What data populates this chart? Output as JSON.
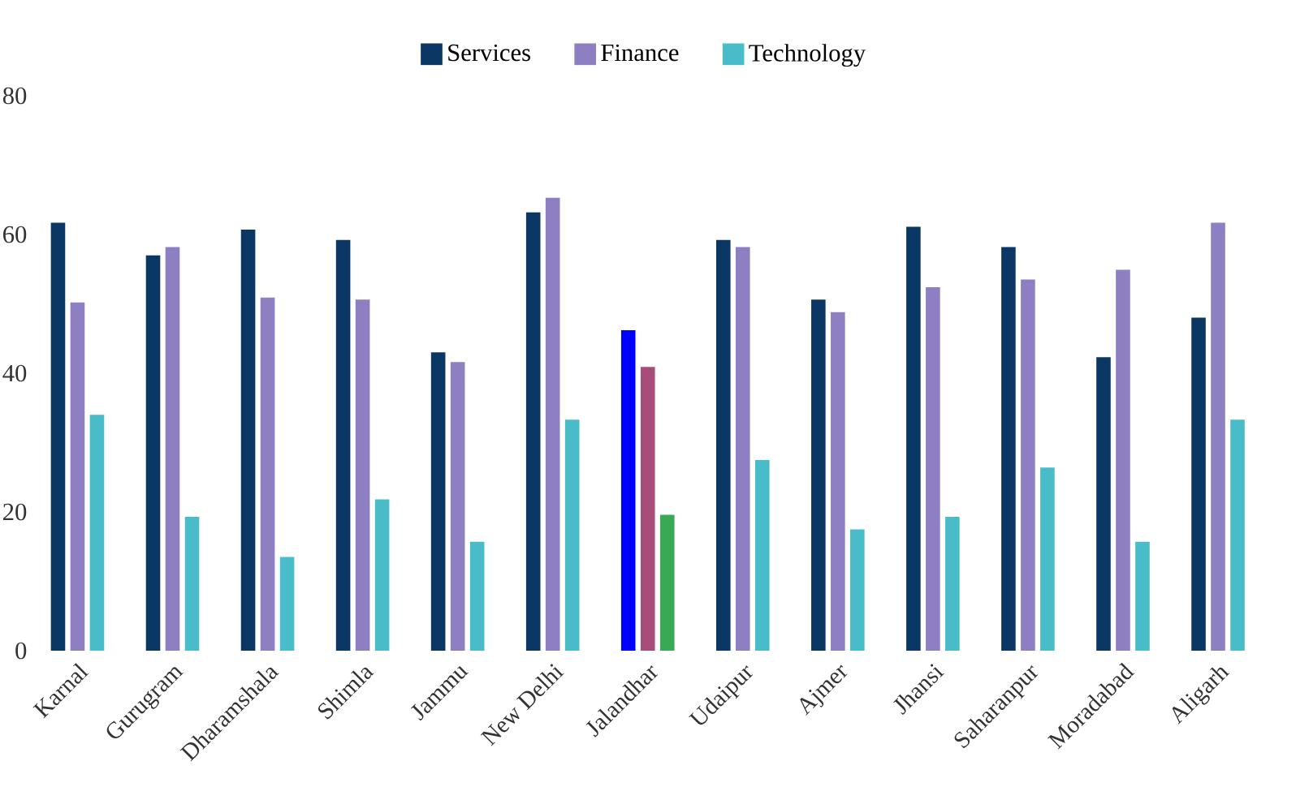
{
  "chart_data": {
    "type": "bar",
    "categories": [
      "Karnal",
      "Gurugram",
      "Dharamshala",
      "Shimla",
      "Jammu",
      "New Delhi",
      "Jalandhar",
      "Udaipur",
      "Ajmer",
      "Jhansi",
      "Saharanpur",
      "Moradabad",
      "Aligarh"
    ],
    "series": [
      {
        "name": "Services",
        "color": "#0a3763",
        "colors": [
          "#0a3763",
          "#0a3763",
          "#0a3763",
          "#0a3763",
          "#0a3763",
          "#0a3763",
          "#0000ff",
          "#0a3763",
          "#0a3763",
          "#0a3763",
          "#0a3763",
          "#0a3763",
          "#0a3763"
        ],
        "values": [
          61.7,
          57.0,
          60.7,
          59.2,
          43.0,
          63.2,
          46.2,
          59.2,
          50.6,
          61.1,
          58.2,
          42.3,
          48.0
        ]
      },
      {
        "name": "Finance",
        "color": "#8e7fc3",
        "colors": [
          "#8e7fc3",
          "#8e7fc3",
          "#8e7fc3",
          "#8e7fc3",
          "#8e7fc3",
          "#8e7fc3",
          "#a64d79",
          "#8e7fc3",
          "#8e7fc3",
          "#8e7fc3",
          "#8e7fc3",
          "#8e7fc3",
          "#8e7fc3"
        ],
        "values": [
          50.2,
          58.2,
          50.9,
          50.6,
          41.6,
          65.3,
          40.9,
          58.2,
          48.8,
          52.4,
          53.5,
          54.9,
          61.7
        ]
      },
      {
        "name": "Technology",
        "color": "#48bcc8",
        "colors": [
          "#48bcc8",
          "#48bcc8",
          "#48bcc8",
          "#48bcc8",
          "#48bcc8",
          "#48bcc8",
          "#38aa55",
          "#48bcc8",
          "#48bcc8",
          "#48bcc8",
          "#48bcc8",
          "#48bcc8",
          "#48bcc8"
        ],
        "values": [
          34.0,
          19.3,
          13.5,
          21.8,
          15.7,
          33.3,
          19.6,
          27.5,
          17.5,
          19.3,
          26.4,
          15.7,
          33.3
        ]
      }
    ],
    "ylim": [
      0,
      80
    ],
    "yticks": [
      0,
      20,
      40,
      60,
      80
    ],
    "grid": false,
    "legend": "top"
  }
}
